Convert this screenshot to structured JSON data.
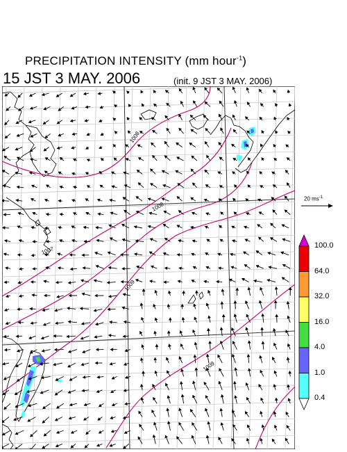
{
  "header": {
    "title": "PRECIPITATION INTENSITY (mm hour",
    "title_exp": "-1",
    "title_close": ")",
    "valid_time": "15 JST 3 MAY. 2006",
    "init_time": "(init. 9 JST 3 MAY. 2006)"
  },
  "map": {
    "isobars": [
      {
        "label": "1008",
        "color": "#cc0066"
      },
      {
        "label": "1008",
        "color": "#cc0066"
      },
      {
        "label": "1007",
        "color": "#cc0066"
      },
      {
        "label": "1009",
        "color": "#cc0066"
      },
      {
        "label": "1009",
        "color": "#cc0066"
      }
    ]
  },
  "wind_scale": {
    "label": "20 ms",
    "exp": "-1"
  },
  "colorbar": {
    "levels": [
      "100.0",
      "64.0",
      "32.0",
      "16.0",
      "4.0",
      "1.0",
      "0.4"
    ],
    "colors": [
      "#dd00dd",
      "#ee0000",
      "#ff9933",
      "#ffff66",
      "#44dd44",
      "#6666ff",
      "#55ffff",
      "#ffffff"
    ]
  }
}
